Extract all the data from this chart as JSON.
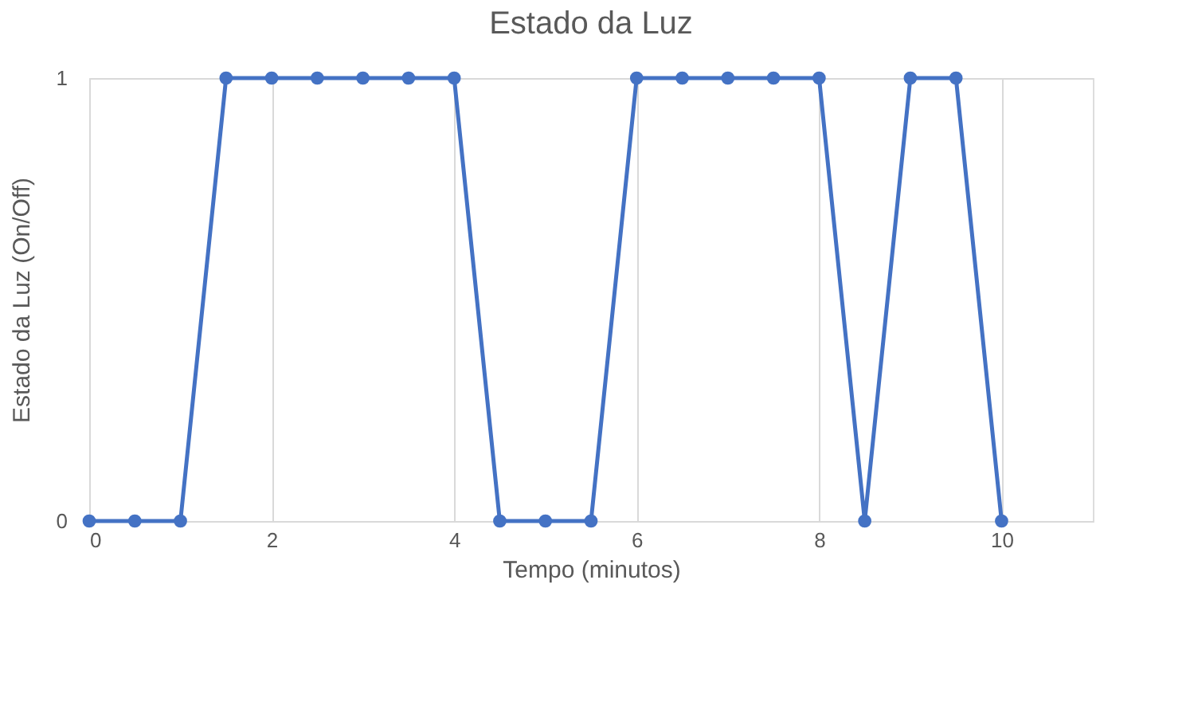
{
  "chart_data": {
    "type": "line",
    "title": "Estado da Luz",
    "xlabel": "Tempo (minutos)",
    "ylabel": "Estado da  Luz (On/Off)",
    "x": [
      0,
      0.5,
      1,
      1.5,
      2,
      2.5,
      3,
      3.5,
      4,
      4.5,
      5,
      5.5,
      6,
      6.5,
      7,
      7.5,
      8,
      8.5,
      9,
      9.5,
      10
    ],
    "series": [
      {
        "color": "#4472c4",
        "values": [
          0,
          0,
          0,
          1,
          1,
          1,
          1,
          1,
          1,
          0,
          0,
          0,
          1,
          1,
          1,
          1,
          1,
          0,
          1,
          1,
          0
        ]
      }
    ],
    "xlim": [
      0,
      11
    ],
    "xticks": [
      0,
      2,
      4,
      6,
      8,
      10
    ],
    "ylim": [
      0,
      1
    ],
    "yticks": [
      0,
      1
    ],
    "grid": true,
    "marker": "circle",
    "line_style": "solid"
  }
}
